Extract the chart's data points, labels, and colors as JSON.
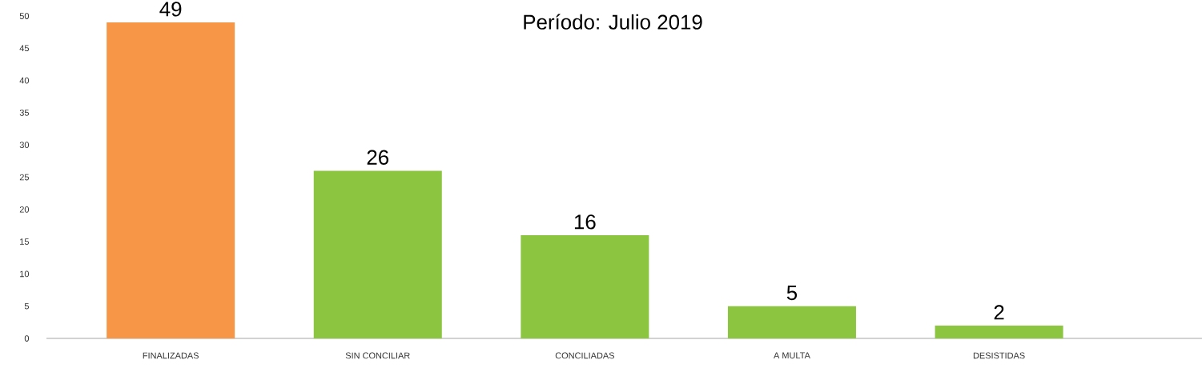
{
  "chart_data": {
    "type": "bar",
    "title": "Período: Julio 2019",
    "categories": [
      "FINALIZADAS",
      "SIN CONCILIAR",
      "CONCILIADAS",
      "A MULTA",
      "DESISTIDAS"
    ],
    "values": [
      49,
      26,
      16,
      5,
      2
    ],
    "colors": [
      "#f79646",
      "#8cc540",
      "#8cc540",
      "#8cc540",
      "#8cc540"
    ],
    "ylim": [
      0,
      50
    ],
    "yticks": [
      0,
      5,
      10,
      15,
      20,
      25,
      30,
      35,
      40,
      45,
      50
    ],
    "data_labels": true
  }
}
